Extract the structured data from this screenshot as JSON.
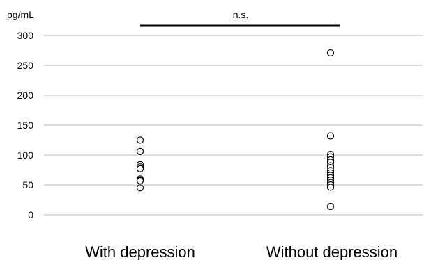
{
  "chart_data": {
    "type": "scatter",
    "ylabel": "pg/mL",
    "ylim": [
      0,
      300
    ],
    "yticks": [
      0,
      50,
      100,
      150,
      200,
      250,
      300
    ],
    "grid": true,
    "categories": [
      "With depression",
      "Without depression"
    ],
    "series": [
      {
        "category": "With depression",
        "values": [
          125,
          106,
          84,
          80,
          77,
          60,
          58,
          57,
          45
        ]
      },
      {
        "category": "Without depression",
        "values": [
          271,
          132,
          101,
          97,
          92,
          88,
          82,
          79,
          74,
          70,
          66,
          62,
          58,
          54,
          50,
          46,
          14
        ]
      }
    ],
    "annotation": {
      "text": "n.s.",
      "from": "With depression",
      "to": "Without depression"
    }
  }
}
